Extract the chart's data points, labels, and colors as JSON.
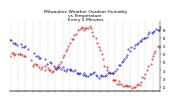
{
  "title": "Milwaukee Weather Outdoor Humidity\nvs Temperature\nEvery 5 Minutes",
  "background_color": "#ffffff",
  "plot_bg_color": "#ffffff",
  "grid_color": "#aaaaaa",
  "blue_color": "#0000dd",
  "red_color": "#dd0000",
  "title_fontsize": 3.2,
  "tick_fontsize": 1.9,
  "x_min": 0,
  "x_max": 100,
  "ylim": [
    15,
    100
  ],
  "num_vgrid": 21,
  "y_right_labels": [
    "90",
    "80",
    "70",
    "60",
    "50",
    "40",
    "30",
    "20"
  ],
  "y_right_positions": [
    90,
    80,
    70,
    60,
    50,
    40,
    30,
    20
  ],
  "blue_points_x": [
    0,
    1,
    2,
    3,
    4,
    5,
    7,
    8,
    9,
    10,
    12,
    16,
    17,
    18,
    19,
    20,
    23,
    25,
    26,
    27,
    29,
    30,
    31,
    32,
    33,
    34,
    35,
    36,
    37,
    38,
    39,
    40,
    41,
    42,
    43,
    44,
    45,
    46,
    47,
    48,
    49,
    50,
    51,
    52,
    53,
    54,
    55,
    56,
    57,
    58,
    59,
    60,
    61,
    62,
    63,
    64,
    65,
    66,
    67,
    68,
    69,
    70,
    71,
    72,
    73,
    74,
    75,
    76,
    77,
    78,
    79,
    80,
    81,
    82,
    83,
    84,
    85,
    86,
    87,
    88,
    89,
    90,
    91,
    92,
    93,
    94,
    95,
    96,
    97,
    98,
    99,
    100
  ],
  "blue_points_y": [
    78,
    77,
    76,
    75,
    74,
    73,
    71,
    70,
    69,
    68,
    66,
    60,
    59,
    58,
    57,
    56,
    53,
    50,
    49,
    48,
    46,
    45,
    44,
    43,
    43,
    42,
    42,
    41,
    41,
    41,
    40,
    40,
    39,
    39,
    38,
    38,
    37,
    37,
    37,
    36,
    36,
    35,
    35,
    35,
    35,
    34,
    34,
    34,
    34,
    34,
    34,
    34,
    34,
    34,
    34,
    34,
    35,
    36,
    37,
    38,
    39,
    40,
    42,
    44,
    46,
    49,
    52,
    55,
    58,
    60,
    63,
    65,
    67,
    69,
    70,
    72,
    74,
    76,
    77,
    78,
    80,
    81,
    83,
    84,
    85,
    86,
    87,
    88,
    89,
    89,
    90,
    91
  ],
  "red_points_x": [
    0,
    1,
    2,
    3,
    4,
    5,
    6,
    7,
    8,
    9,
    10,
    14,
    15,
    16,
    17,
    18,
    19,
    20,
    21,
    23,
    24,
    25,
    26,
    27,
    28,
    29,
    30,
    31,
    32,
    33,
    34,
    35,
    36,
    37,
    38,
    39,
    40,
    41,
    42,
    43,
    44,
    45,
    46,
    47,
    48,
    49,
    50,
    51,
    52,
    53,
    54,
    55,
    56,
    57,
    58,
    59,
    60,
    61,
    62,
    63,
    64,
    65,
    66,
    67,
    68,
    69,
    70,
    71,
    72,
    73,
    74,
    75,
    76,
    77,
    78,
    79,
    80,
    81,
    82,
    83,
    84,
    85,
    86,
    87,
    88,
    89,
    90,
    91,
    92,
    93,
    94,
    95,
    96,
    97,
    98,
    99,
    100
  ],
  "red_points_y": [
    60,
    60,
    60,
    60,
    60,
    60,
    60,
    60,
    59,
    58,
    57,
    50,
    49,
    48,
    47,
    46,
    45,
    44,
    44,
    42,
    42,
    41,
    41,
    40,
    40,
    39,
    40,
    41,
    43,
    46,
    50,
    54,
    58,
    62,
    66,
    70,
    74,
    77,
    80,
    82,
    85,
    87,
    89,
    90,
    91,
    92,
    92,
    93,
    93,
    92,
    91,
    88,
    84,
    80,
    75,
    70,
    64,
    58,
    53,
    48,
    44,
    40,
    37,
    34,
    31,
    29,
    27,
    25,
    24,
    23,
    22,
    21,
    20,
    20,
    20,
    20,
    20,
    20,
    20,
    20,
    21,
    22,
    24,
    26,
    29,
    32,
    36,
    40,
    44,
    48,
    52,
    56,
    60,
    63,
    66,
    69,
    72
  ],
  "x_tick_positions": [
    0,
    5,
    10,
    15,
    20,
    25,
    30,
    35,
    40,
    45,
    50,
    55,
    60,
    65,
    70,
    75,
    80,
    85,
    90,
    95,
    100
  ],
  "x_tick_labels": [
    "",
    "",
    "",
    "",
    "",
    "",
    "",
    "",
    "",
    "",
    "",
    "",
    "",
    "",
    "",
    "",
    "",
    "",
    "",
    "",
    ""
  ]
}
